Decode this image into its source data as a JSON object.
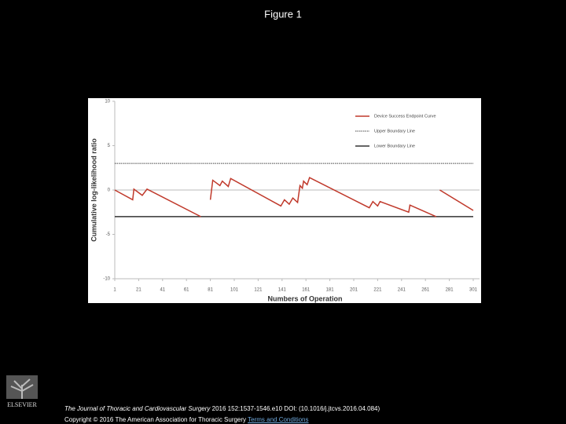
{
  "page_title": "Figure 1",
  "chart_data": {
    "type": "line",
    "xlabel": "Numbers of Operation",
    "ylabel": "Cumulative log-likelihood ratio",
    "xlim": [
      1,
      301
    ],
    "xticks": [
      1,
      21,
      41,
      61,
      81,
      101,
      121,
      141,
      161,
      181,
      201,
      221,
      241,
      261,
      281,
      301
    ],
    "ylim": [
      -10,
      10
    ],
    "yticks": [
      -10,
      -5,
      0,
      5,
      10
    ],
    "series": [
      {
        "name": "Device Success Endpoint Curve",
        "color": "#c0392b",
        "x": [
          1,
          16,
          17,
          24,
          28,
          73,
          null,
          81,
          83,
          89,
          91,
          96,
          98,
          140,
          143,
          147,
          150,
          154,
          156,
          158,
          159,
          162,
          164,
          214,
          217,
          221,
          223,
          247,
          248,
          270,
          null,
          273,
          301
        ],
        "values": [
          0,
          -1.1,
          0.1,
          -0.6,
          0.1,
          -3,
          null,
          -1.1,
          1.1,
          0.5,
          1.0,
          0.4,
          1.3,
          -1.8,
          -1.1,
          -1.6,
          -0.9,
          -1.4,
          0.5,
          0.2,
          1.0,
          0.6,
          1.4,
          -2,
          -1.3,
          -1.8,
          -1.3,
          -2.5,
          -1.7,
          -3,
          null,
          0,
          -2.3
        ]
      }
    ],
    "lines": [
      {
        "name": "Upper Boundary Line",
        "value": 3,
        "color": "#444444",
        "dashed": true
      },
      {
        "name": "Lower Boundary Line",
        "value": -3,
        "color": "#333333",
        "dashed": false
      }
    ]
  },
  "footer": {
    "journal": "The Journal of Thoracic and Cardiovascular Surgery",
    "citation": "2016 152:1537-1546.e10 DOI: (10.1016/j.jtcvs.2016.04.084)",
    "copyright": "Copyright © 2016 The American Association for Thoracic Surgery",
    "link": "Terms and Conditions",
    "logo": "ELSEVIER"
  }
}
